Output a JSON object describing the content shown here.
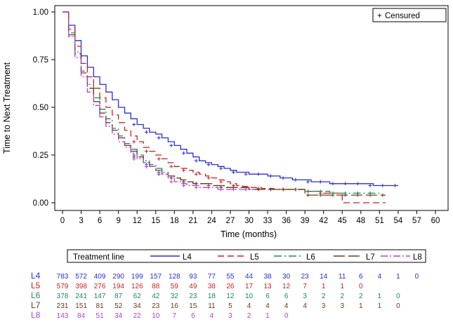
{
  "chart_data": {
    "type": "line",
    "subtype": "kaplan-meier",
    "title": "",
    "xlabel": "Time (months)",
    "ylabel": "Time to Next Treatment",
    "xlim": [
      0,
      60
    ],
    "ylim": [
      0,
      1
    ],
    "x_ticks": [
      0,
      3,
      6,
      9,
      12,
      15,
      18,
      21,
      24,
      27,
      30,
      33,
      36,
      39,
      42,
      45,
      48,
      51,
      54,
      57,
      60
    ],
    "y_ticks": [
      0,
      0.25,
      0.5,
      0.75,
      1
    ],
    "y_tick_labels": [
      "0.00",
      "0.25",
      "0.50",
      "0.75",
      "1.00"
    ],
    "censor_legend": "Censured",
    "legend_title": "Treatment line",
    "series": [
      {
        "name": "L4",
        "color": "#2b2bd9",
        "dash": "solid",
        "x": [
          0,
          1,
          2,
          3,
          4,
          5,
          6,
          7,
          8,
          9,
          10,
          11,
          12,
          13,
          14,
          15,
          16,
          17,
          18,
          19,
          20,
          21,
          22,
          23,
          24,
          25,
          26,
          27,
          28,
          29,
          30,
          31,
          32,
          33,
          34,
          35,
          36,
          37,
          38,
          39,
          40,
          41,
          42,
          43,
          44,
          45,
          46,
          47,
          48,
          49,
          50,
          51,
          52,
          53,
          54
        ],
        "y": [
          1.0,
          0.93,
          0.85,
          0.77,
          0.71,
          0.66,
          0.62,
          0.58,
          0.54,
          0.5,
          0.47,
          0.44,
          0.41,
          0.39,
          0.37,
          0.36,
          0.34,
          0.32,
          0.3,
          0.28,
          0.26,
          0.24,
          0.22,
          0.21,
          0.2,
          0.19,
          0.18,
          0.17,
          0.16,
          0.16,
          0.15,
          0.15,
          0.15,
          0.14,
          0.14,
          0.13,
          0.13,
          0.12,
          0.12,
          0.12,
          0.11,
          0.11,
          0.11,
          0.1,
          0.1,
          0.1,
          0.1,
          0.1,
          0.1,
          0.1,
          0.09,
          0.09,
          0.09,
          0.09,
          0.09
        ]
      },
      {
        "name": "L5",
        "color": "#cc1f1f",
        "dash": "9,5",
        "x": [
          0,
          1,
          2,
          3,
          4,
          5,
          6,
          7,
          8,
          9,
          10,
          11,
          12,
          13,
          14,
          15,
          16,
          17,
          18,
          19,
          20,
          21,
          22,
          23,
          24,
          25,
          26,
          27,
          28,
          29,
          30,
          31,
          32,
          33,
          34,
          35,
          36,
          37,
          38,
          39,
          40,
          41,
          42,
          43,
          44,
          45,
          45.01,
          46,
          47,
          48,
          49,
          50,
          51,
          52
        ],
        "y": [
          1.0,
          0.91,
          0.82,
          0.73,
          0.66,
          0.6,
          0.55,
          0.5,
          0.46,
          0.42,
          0.38,
          0.35,
          0.32,
          0.29,
          0.27,
          0.25,
          0.23,
          0.21,
          0.19,
          0.18,
          0.17,
          0.16,
          0.15,
          0.14,
          0.13,
          0.12,
          0.11,
          0.1,
          0.09,
          0.085,
          0.08,
          0.08,
          0.075,
          0.075,
          0.07,
          0.07,
          0.07,
          0.07,
          0.07,
          0.06,
          0.06,
          0.06,
          0.05,
          0.05,
          0.05,
          0.05,
          0.0,
          0.0,
          0.0,
          0.0,
          0.0,
          0.0,
          0.0,
          0.0
        ]
      },
      {
        "name": "L6",
        "color": "#1a8a5a",
        "dash": "11,4,2,4",
        "x": [
          0,
          1,
          2,
          3,
          4,
          5,
          6,
          7,
          8,
          9,
          10,
          11,
          12,
          13,
          14,
          15,
          16,
          17,
          18,
          19,
          20,
          21,
          22,
          23,
          24,
          25,
          26,
          27,
          28,
          29,
          30,
          31,
          32,
          33,
          34,
          35,
          36,
          37,
          38,
          39,
          40,
          41,
          42,
          43,
          44,
          45,
          46,
          47,
          48,
          49,
          50,
          51
        ],
        "y": [
          1.0,
          0.89,
          0.79,
          0.69,
          0.62,
          0.55,
          0.49,
          0.44,
          0.39,
          0.35,
          0.31,
          0.28,
          0.25,
          0.22,
          0.2,
          0.18,
          0.16,
          0.14,
          0.13,
          0.12,
          0.11,
          0.1,
          0.1,
          0.1,
          0.09,
          0.09,
          0.08,
          0.08,
          0.08,
          0.08,
          0.07,
          0.07,
          0.07,
          0.07,
          0.07,
          0.07,
          0.07,
          0.07,
          0.07,
          0.06,
          0.06,
          0.06,
          0.06,
          0.05,
          0.05,
          0.05,
          0.05,
          0.05,
          0.05,
          0.05,
          0.05,
          0.05
        ]
      },
      {
        "name": "L7",
        "color": "#6b3a1a",
        "dash": "16,5",
        "x": [
          0,
          1,
          2,
          3,
          4,
          5,
          6,
          7,
          8,
          9,
          10,
          11,
          12,
          13,
          14,
          15,
          16,
          17,
          18,
          19,
          20,
          21,
          22,
          23,
          24,
          25,
          26,
          27,
          28,
          29,
          30,
          31,
          32,
          33,
          34,
          35,
          36,
          37,
          38,
          39,
          40,
          41,
          42,
          43,
          44,
          45,
          46,
          47,
          48,
          49,
          50,
          51,
          52
        ],
        "y": [
          1.0,
          0.88,
          0.78,
          0.68,
          0.6,
          0.53,
          0.47,
          0.42,
          0.38,
          0.34,
          0.3,
          0.27,
          0.24,
          0.21,
          0.19,
          0.17,
          0.15,
          0.14,
          0.13,
          0.12,
          0.11,
          0.1,
          0.1,
          0.1,
          0.09,
          0.09,
          0.08,
          0.08,
          0.08,
          0.08,
          0.07,
          0.07,
          0.07,
          0.07,
          0.07,
          0.07,
          0.07,
          0.07,
          0.07,
          0.04,
          0.04,
          0.04,
          0.04,
          0.04,
          0.04,
          0.04,
          0.04,
          0.04,
          0.04,
          0.04,
          0.04,
          0.04,
          0.04
        ]
      },
      {
        "name": "L8",
        "color": "#b040d8",
        "dash": "10,3,2,3",
        "x": [
          0,
          1,
          2,
          3,
          4,
          5,
          6,
          7,
          8,
          9,
          10,
          11,
          12,
          13,
          14,
          15,
          16,
          17,
          18,
          19,
          20,
          21,
          22,
          23,
          24,
          25,
          26,
          27,
          28,
          29,
          30,
          31
        ],
        "y": [
          1.0,
          0.87,
          0.76,
          0.66,
          0.58,
          0.51,
          0.45,
          0.4,
          0.36,
          0.32,
          0.29,
          0.26,
          0.23,
          0.21,
          0.19,
          0.17,
          0.15,
          0.13,
          0.11,
          0.1,
          0.09,
          0.09,
          0.08,
          0.08,
          0.08,
          0.07,
          0.07,
          0.07,
          0.07,
          0.07,
          0.07,
          0.07
        ]
      }
    ],
    "numbers_at_risk": {
      "times": [
        0,
        3,
        6,
        9,
        12,
        15,
        18,
        21,
        24,
        27,
        30,
        33,
        36,
        39,
        42,
        45,
        48,
        51,
        54,
        57
      ],
      "rows": [
        {
          "label": "L4",
          "values": [
            "783",
            "572",
            "409",
            "290",
            "199",
            "157",
            "128",
            "93",
            "77",
            "55",
            "44",
            "38",
            "30",
            "23",
            "14",
            "11",
            "6",
            "4",
            "1",
            "0"
          ]
        },
        {
          "label": "L5",
          "values": [
            "579",
            "398",
            "276",
            "194",
            "126",
            "88",
            "59",
            "49",
            "38",
            "26",
            "17",
            "13",
            "12",
            "7",
            "1",
            "1",
            "0"
          ]
        },
        {
          "label": "L6",
          "values": [
            "378",
            "241",
            "147",
            "87",
            "62",
            "42",
            "32",
            "23",
            "18",
            "12",
            "10",
            "6",
            "6",
            "3",
            "2",
            "2",
            "2",
            "1",
            "0"
          ]
        },
        {
          "label": "L7",
          "values": [
            "231",
            "151",
            "81",
            "52",
            "34",
            "23",
            "16",
            "15",
            "11",
            "5",
            "4",
            "4",
            "4",
            "4",
            "3",
            "3",
            "1",
            "1",
            "0"
          ]
        },
        {
          "label": "L8",
          "values": [
            "143",
            "84",
            "51",
            "34",
            "22",
            "10",
            "7",
            "6",
            "4",
            "3",
            "2",
            "1",
            "0"
          ]
        }
      ]
    }
  }
}
